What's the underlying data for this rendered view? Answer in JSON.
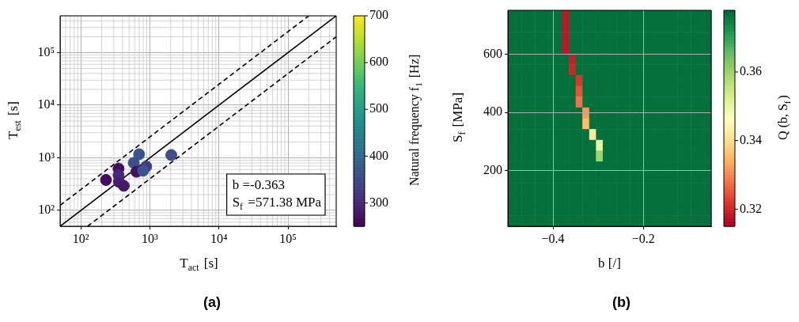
{
  "chart_data": [
    {
      "type": "scatter",
      "title": "(a)",
      "xlabel": "T$_{act}$ [s]",
      "ylabel": "T$_{est}$ [s]",
      "clabel": "Natural frequency f$_{1}$ [Hz]",
      "annotations": [
        "b =-0.363",
        "S$_{f}$ =571.38 MPa"
      ],
      "series": [
        {
          "type": "line",
          "color": "#000000",
          "line_style": "solid",
          "x": [
            50,
            500000
          ],
          "values": [
            50,
            500000
          ]
        },
        {
          "type": "line",
          "color": "#000000",
          "line_style": "dashed",
          "x": [
            50,
            200000
          ],
          "values": [
            125,
            500000
          ]
        },
        {
          "type": "line",
          "color": "#000000",
          "line_style": "dashed",
          "x": [
            125,
            500000
          ],
          "values": [
            50,
            200000
          ]
        },
        {
          "type": "scatter",
          "marker": "circle",
          "x": [
            231,
            351,
            351,
            355,
            418,
            697,
            583,
            638,
            883,
            795,
            2040
          ],
          "values": [
            380,
            623,
            467,
            350,
            294,
            1170,
            802,
            543,
            683,
            568,
            1130
          ],
          "cvalues": [
            265,
            265,
            300,
            290,
            280,
            370,
            360,
            270,
            330,
            370,
            360
          ],
          "colors": [
            "#450d5f",
            "#450d5f",
            "#482878",
            "#472071",
            "#46186a",
            "#39558b",
            "#3b4f8a",
            "#461162",
            "#423c82",
            "#39558b",
            "#3b4f8a"
          ]
        }
      ],
      "xlim": [
        50,
        500000
      ],
      "ylim": [
        50,
        500000
      ],
      "xticks": [
        {
          "value": 100,
          "label": "10²"
        },
        {
          "value": 1000,
          "label": "10³"
        },
        {
          "value": 10000,
          "label": "10⁴"
        },
        {
          "value": 100000,
          "label": "10⁵"
        }
      ],
      "yticks": [
        {
          "value": 100,
          "label": "10²"
        },
        {
          "value": 1000,
          "label": "10³"
        },
        {
          "value": 10000,
          "label": "10⁴"
        },
        {
          "value": 100000,
          "label": "10⁵"
        }
      ],
      "log": "xy",
      "grid": true,
      "clim": [
        250,
        700
      ],
      "cticks": [
        300,
        400,
        500,
        600,
        700
      ]
    },
    {
      "type": "heatmap",
      "title": "(b)",
      "xlabel": "b [/]",
      "ylabel": "S$_{f}$ [MPa]",
      "clabel": "Q (b, S$_{f}$)",
      "xlim": [
        -0.5,
        -0.05
      ],
      "ylim": [
        10,
        750
      ],
      "xticks": [
        {
          "value": -0.4,
          "label": "−0.4"
        },
        {
          "value": -0.2,
          "label": "−0.2"
        }
      ],
      "yticks": [
        200,
        400,
        600
      ],
      "grid": true,
      "clim": [
        0.315,
        0.378
      ],
      "cticks": [
        0.32,
        0.34,
        0.36
      ],
      "cells": [
        [
          0.377,
          0.377,
          0.377,
          0.377,
          0.377,
          0.377,
          0.377,
          0.377,
          0.318,
          0.377,
          0.377,
          0.377,
          0.377,
          0.377,
          0.377,
          0.377,
          0.377,
          0.377,
          0.377,
          0.377,
          0.377,
          0.377,
          0.377,
          0.377,
          0.377,
          0.377,
          0.377,
          0.377,
          0.377,
          0.377
        ],
        [
          0.377,
          0.377,
          0.377,
          0.377,
          0.377,
          0.377,
          0.377,
          0.377,
          0.318,
          0.377,
          0.377,
          0.377,
          0.377,
          0.377,
          0.377,
          0.377,
          0.377,
          0.377,
          0.377,
          0.377,
          0.377,
          0.377,
          0.377,
          0.377,
          0.377,
          0.377,
          0.377,
          0.377,
          0.377,
          0.377
        ],
        [
          0.377,
          0.377,
          0.377,
          0.377,
          0.377,
          0.377,
          0.377,
          0.377,
          0.318,
          0.377,
          0.377,
          0.377,
          0.377,
          0.377,
          0.377,
          0.377,
          0.377,
          0.377,
          0.377,
          0.377,
          0.377,
          0.377,
          0.377,
          0.377,
          0.377,
          0.377,
          0.377,
          0.377,
          0.377,
          0.377
        ],
        [
          0.377,
          0.377,
          0.377,
          0.377,
          0.377,
          0.377,
          0.377,
          0.377,
          0.318,
          0.377,
          0.377,
          0.377,
          0.377,
          0.377,
          0.377,
          0.377,
          0.377,
          0.377,
          0.377,
          0.377,
          0.377,
          0.377,
          0.377,
          0.377,
          0.377,
          0.377,
          0.377,
          0.377,
          0.377,
          0.377
        ],
        [
          0.377,
          0.377,
          0.377,
          0.377,
          0.377,
          0.377,
          0.377,
          0.377,
          0.377,
          0.319,
          0.377,
          0.377,
          0.377,
          0.377,
          0.377,
          0.377,
          0.377,
          0.377,
          0.377,
          0.377,
          0.377,
          0.377,
          0.377,
          0.377,
          0.377,
          0.377,
          0.377,
          0.377,
          0.377,
          0.377
        ],
        [
          0.377,
          0.377,
          0.377,
          0.377,
          0.377,
          0.377,
          0.377,
          0.377,
          0.377,
          0.32,
          0.377,
          0.377,
          0.377,
          0.377,
          0.377,
          0.377,
          0.377,
          0.377,
          0.377,
          0.377,
          0.377,
          0.377,
          0.377,
          0.377,
          0.377,
          0.377,
          0.377,
          0.377,
          0.377,
          0.377
        ],
        [
          0.377,
          0.377,
          0.377,
          0.377,
          0.377,
          0.377,
          0.377,
          0.377,
          0.377,
          0.377,
          0.322,
          0.377,
          0.377,
          0.377,
          0.377,
          0.377,
          0.377,
          0.377,
          0.377,
          0.377,
          0.377,
          0.377,
          0.377,
          0.377,
          0.377,
          0.377,
          0.377,
          0.377,
          0.377,
          0.377
        ],
        [
          0.377,
          0.377,
          0.377,
          0.377,
          0.377,
          0.377,
          0.377,
          0.377,
          0.377,
          0.377,
          0.325,
          0.377,
          0.377,
          0.377,
          0.377,
          0.377,
          0.377,
          0.377,
          0.377,
          0.377,
          0.377,
          0.377,
          0.377,
          0.377,
          0.377,
          0.377,
          0.377,
          0.377,
          0.377,
          0.377
        ],
        [
          0.377,
          0.377,
          0.377,
          0.377,
          0.377,
          0.377,
          0.377,
          0.377,
          0.377,
          0.377,
          0.328,
          0.377,
          0.377,
          0.377,
          0.377,
          0.377,
          0.377,
          0.377,
          0.377,
          0.377,
          0.377,
          0.377,
          0.377,
          0.377,
          0.377,
          0.377,
          0.377,
          0.377,
          0.377,
          0.377
        ],
        [
          0.377,
          0.377,
          0.377,
          0.377,
          0.377,
          0.377,
          0.377,
          0.377,
          0.377,
          0.377,
          0.377,
          0.332,
          0.377,
          0.377,
          0.377,
          0.377,
          0.377,
          0.377,
          0.377,
          0.377,
          0.377,
          0.377,
          0.377,
          0.377,
          0.377,
          0.377,
          0.377,
          0.377,
          0.377,
          0.377
        ],
        [
          0.377,
          0.377,
          0.377,
          0.377,
          0.377,
          0.377,
          0.377,
          0.377,
          0.377,
          0.377,
          0.377,
          0.336,
          0.377,
          0.377,
          0.377,
          0.377,
          0.377,
          0.377,
          0.377,
          0.377,
          0.377,
          0.377,
          0.377,
          0.377,
          0.377,
          0.377,
          0.377,
          0.377,
          0.377,
          0.377
        ],
        [
          0.377,
          0.377,
          0.377,
          0.377,
          0.377,
          0.377,
          0.377,
          0.377,
          0.377,
          0.377,
          0.377,
          0.377,
          0.342,
          0.377,
          0.377,
          0.377,
          0.377,
          0.377,
          0.377,
          0.377,
          0.377,
          0.377,
          0.377,
          0.377,
          0.377,
          0.377,
          0.377,
          0.377,
          0.377,
          0.377
        ],
        [
          0.377,
          0.377,
          0.377,
          0.377,
          0.377,
          0.377,
          0.377,
          0.377,
          0.377,
          0.377,
          0.377,
          0.377,
          0.377,
          0.35,
          0.377,
          0.377,
          0.377,
          0.377,
          0.377,
          0.377,
          0.377,
          0.377,
          0.377,
          0.377,
          0.377,
          0.377,
          0.377,
          0.377,
          0.377,
          0.377
        ],
        [
          0.377,
          0.377,
          0.377,
          0.377,
          0.377,
          0.377,
          0.377,
          0.377,
          0.377,
          0.377,
          0.377,
          0.377,
          0.377,
          0.36,
          0.377,
          0.377,
          0.377,
          0.377,
          0.377,
          0.377,
          0.377,
          0.377,
          0.377,
          0.377,
          0.377,
          0.377,
          0.377,
          0.377,
          0.377,
          0.377
        ],
        [
          0.377,
          0.377,
          0.377,
          0.377,
          0.377,
          0.377,
          0.377,
          0.377,
          0.377,
          0.377,
          0.377,
          0.377,
          0.377,
          0.377,
          0.377,
          0.377,
          0.377,
          0.377,
          0.377,
          0.377,
          0.377,
          0.377,
          0.377,
          0.377,
          0.377,
          0.377,
          0.377,
          0.377,
          0.377,
          0.377
        ],
        [
          0.377,
          0.377,
          0.377,
          0.377,
          0.377,
          0.377,
          0.377,
          0.377,
          0.377,
          0.377,
          0.377,
          0.377,
          0.377,
          0.377,
          0.377,
          0.377,
          0.377,
          0.377,
          0.377,
          0.377,
          0.377,
          0.377,
          0.377,
          0.377,
          0.377,
          0.377,
          0.377,
          0.377,
          0.377,
          0.377
        ],
        [
          0.377,
          0.377,
          0.377,
          0.377,
          0.377,
          0.377,
          0.377,
          0.377,
          0.377,
          0.377,
          0.377,
          0.377,
          0.377,
          0.377,
          0.377,
          0.377,
          0.377,
          0.377,
          0.377,
          0.377,
          0.377,
          0.377,
          0.377,
          0.377,
          0.377,
          0.377,
          0.377,
          0.377,
          0.377,
          0.377
        ],
        [
          0.377,
          0.377,
          0.377,
          0.377,
          0.377,
          0.377,
          0.377,
          0.377,
          0.377,
          0.377,
          0.377,
          0.377,
          0.377,
          0.377,
          0.377,
          0.377,
          0.377,
          0.377,
          0.377,
          0.377,
          0.377,
          0.377,
          0.377,
          0.377,
          0.377,
          0.377,
          0.377,
          0.377,
          0.377,
          0.377
        ],
        [
          0.377,
          0.377,
          0.377,
          0.377,
          0.377,
          0.377,
          0.377,
          0.377,
          0.377,
          0.377,
          0.377,
          0.377,
          0.377,
          0.377,
          0.377,
          0.377,
          0.377,
          0.377,
          0.377,
          0.377,
          0.377,
          0.377,
          0.377,
          0.377,
          0.377,
          0.377,
          0.377,
          0.377,
          0.377,
          0.377
        ],
        [
          0.377,
          0.377,
          0.377,
          0.377,
          0.377,
          0.377,
          0.377,
          0.377,
          0.377,
          0.377,
          0.377,
          0.377,
          0.377,
          0.377,
          0.377,
          0.377,
          0.377,
          0.377,
          0.377,
          0.377,
          0.377,
          0.377,
          0.377,
          0.377,
          0.377,
          0.377,
          0.377,
          0.377,
          0.377,
          0.377
        ]
      ]
    }
  ]
}
